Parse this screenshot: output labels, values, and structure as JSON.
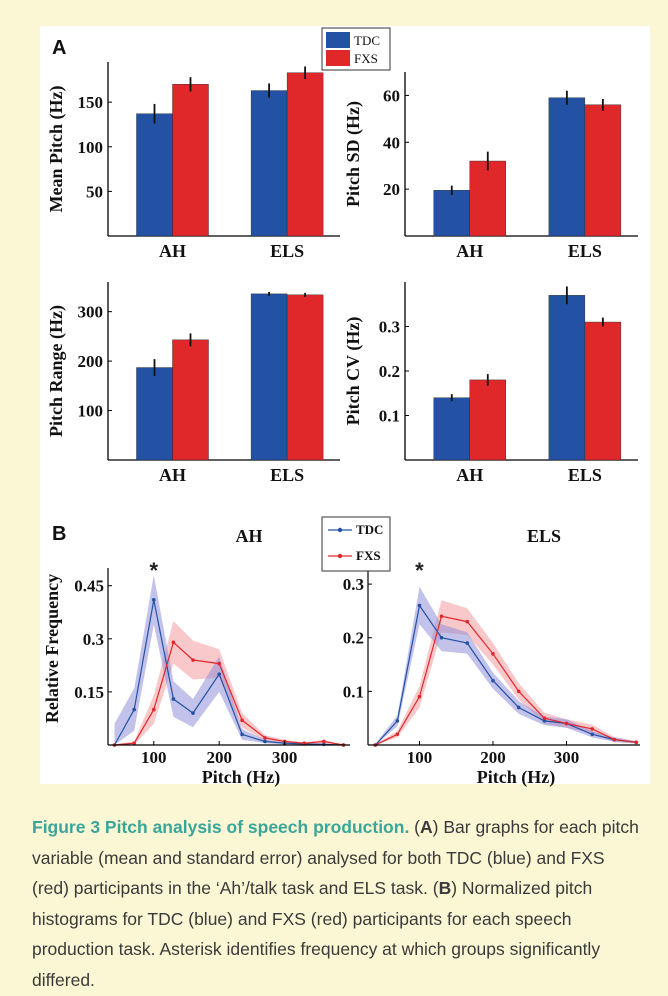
{
  "colors": {
    "tdc": "#2352a5",
    "fxs": "#e0282b",
    "tdc_band": "#8f8fd8",
    "fxs_band": "#f49a9e",
    "caption_title": "#3aa69a",
    "background": "#fbf6d4"
  },
  "legend_a": {
    "tdc": "TDC",
    "fxs": "FXS"
  },
  "legend_b": {
    "tdc": "TDC",
    "fxs": "FXS"
  },
  "panel_a_label": "A",
  "panel_b_label": "B",
  "chart_data": [
    {
      "type": "bar",
      "categories": [
        "AH",
        "ELS"
      ],
      "ylabel": "Mean Pitch (Hz)",
      "ylim": [
        0,
        195
      ],
      "yticks": [
        50,
        100,
        150
      ],
      "series": [
        {
          "name": "TDC",
          "values": [
            137,
            163
          ],
          "errors": [
            11,
            8
          ]
        },
        {
          "name": "FXS",
          "values": [
            170,
            183
          ],
          "errors": [
            8,
            7
          ]
        }
      ]
    },
    {
      "type": "bar",
      "categories": [
        "AH",
        "ELS"
      ],
      "ylabel": "Pitch SD (Hz)",
      "ylim": [
        0,
        70
      ],
      "yticks": [
        20,
        40,
        60
      ],
      "series": [
        {
          "name": "TDC",
          "values": [
            19.5,
            59
          ],
          "errors": [
            2,
            3
          ]
        },
        {
          "name": "FXS",
          "values": [
            32,
            56
          ],
          "errors": [
            4,
            2.5
          ]
        }
      ]
    },
    {
      "type": "bar",
      "categories": [
        "AH",
        "ELS"
      ],
      "ylabel": "Pitch Range (Hz)",
      "ylim": [
        0,
        360
      ],
      "yticks": [
        100,
        200,
        300
      ],
      "series": [
        {
          "name": "TDC",
          "values": [
            187,
            336
          ],
          "errors": [
            17,
            4
          ]
        },
        {
          "name": "FXS",
          "values": [
            243,
            334
          ],
          "errors": [
            13,
            4
          ]
        }
      ]
    },
    {
      "type": "bar",
      "categories": [
        "AH",
        "ELS"
      ],
      "ylabel": "Pitch CV (Hz)",
      "ylim": [
        0,
        0.4
      ],
      "yticks": [
        0.1,
        0.2,
        0.3
      ],
      "series": [
        {
          "name": "TDC",
          "values": [
            0.14,
            0.37
          ],
          "errors": [
            0.008,
            0.02
          ]
        },
        {
          "name": "FXS",
          "values": [
            0.18,
            0.31
          ],
          "errors": [
            0.013,
            0.01
          ]
        }
      ]
    },
    {
      "type": "line",
      "title": "AH",
      "xlabel": "Pitch (Hz)",
      "ylabel": "Relative Frequency",
      "xlim": [
        30,
        400
      ],
      "ylim": [
        0,
        0.5
      ],
      "xticks": [
        100,
        200,
        300
      ],
      "yticks": [
        0.15,
        0.3,
        0.45
      ],
      "x": [
        40,
        70,
        100,
        130,
        160,
        200,
        235,
        270,
        300,
        330,
        360,
        390
      ],
      "annotation": {
        "text": "*",
        "x": 100
      },
      "series": [
        {
          "name": "TDC",
          "values": [
            0,
            0.1,
            0.41,
            0.13,
            0.09,
            0.2,
            0.03,
            0.01,
            0.005,
            0.003,
            0.002,
            0
          ],
          "band": [
            0.06,
            0.06,
            0.07,
            0.05,
            0.04,
            0.05,
            0.015,
            0.005,
            0.003,
            0.002,
            0.002,
            0
          ]
        },
        {
          "name": "FXS",
          "values": [
            0,
            0.005,
            0.1,
            0.29,
            0.24,
            0.23,
            0.07,
            0.02,
            0.01,
            0.005,
            0.01,
            0
          ],
          "band": [
            0.002,
            0.005,
            0.04,
            0.06,
            0.055,
            0.04,
            0.02,
            0.008,
            0.005,
            0.003,
            0.005,
            0
          ]
        }
      ]
    },
    {
      "type": "line",
      "title": "ELS",
      "xlabel": "Pitch (Hz)",
      "ylabel": "",
      "xlim": [
        30,
        400
      ],
      "ylim": [
        0,
        0.33
      ],
      "xticks": [
        100,
        200,
        300
      ],
      "yticks": [
        0.1,
        0.2,
        0.3
      ],
      "x": [
        40,
        70,
        100,
        130,
        165,
        200,
        235,
        270,
        300,
        335,
        365,
        395
      ],
      "annotation": {
        "text": "*",
        "x": 100
      },
      "series": [
        {
          "name": "TDC",
          "values": [
            0,
            0.045,
            0.26,
            0.2,
            0.19,
            0.12,
            0.07,
            0.045,
            0.04,
            0.02,
            0.01,
            0.005
          ],
          "band": [
            0.002,
            0.01,
            0.035,
            0.025,
            0.02,
            0.015,
            0.012,
            0.008,
            0.008,
            0.006,
            0.004,
            0.002
          ]
        },
        {
          "name": "FXS",
          "values": [
            0,
            0.02,
            0.09,
            0.24,
            0.23,
            0.17,
            0.1,
            0.05,
            0.04,
            0.03,
            0.01,
            0.005
          ],
          "band": [
            0.002,
            0.006,
            0.02,
            0.03,
            0.025,
            0.02,
            0.015,
            0.01,
            0.008,
            0.008,
            0.005,
            0.002
          ]
        }
      ]
    }
  ],
  "caption": {
    "title": "Figure 3 Pitch analysis of speech production.",
    "a_open": " (",
    "a_label": "A",
    "a_text": ") Bar graphs for each pitch variable (mean and standard error) analysed for both TDC (blue) and FXS (red) participants in the ‘Ah’/talk task and ELS task. (",
    "b_label": "B",
    "b_text": ") Normalized pitch histograms for TDC (blue) and FXS (red) participants for each speech production task. Asterisk identifies frequency at which groups significantly differed."
  }
}
